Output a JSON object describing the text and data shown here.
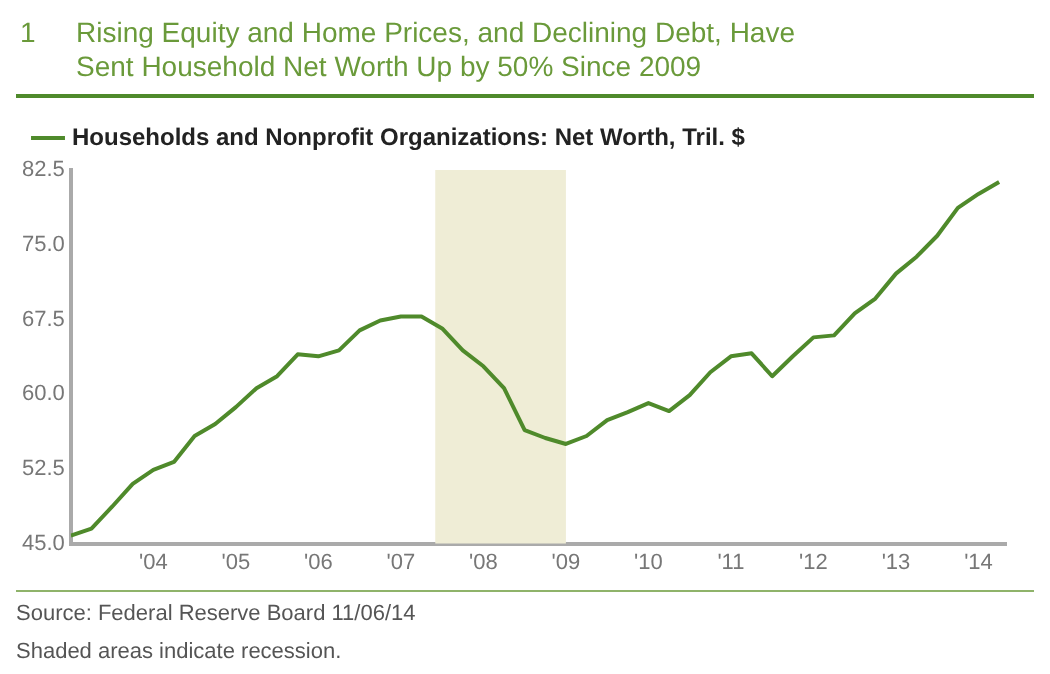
{
  "chart_data": {
    "type": "line",
    "title": "Rising Equity and Home Prices, and Declining Debt, Have Sent Household Net Worth Up by 50% Since 2009",
    "x": [
      "2003-01",
      "2003-04",
      "2003-07",
      "2003-10",
      "2004-01",
      "2004-04",
      "2004-07",
      "2004-10",
      "2005-01",
      "2005-04",
      "2005-07",
      "2005-10",
      "2006-01",
      "2006-04",
      "2006-07",
      "2006-10",
      "2007-01",
      "2007-04",
      "2007-07",
      "2007-10",
      "2008-01",
      "2008-04",
      "2008-07",
      "2008-10",
      "2009-01",
      "2009-04",
      "2009-07",
      "2009-10",
      "2010-01",
      "2010-04",
      "2010-07",
      "2010-10",
      "2011-01",
      "2011-04",
      "2011-07",
      "2011-10",
      "2012-01",
      "2012-04",
      "2012-07",
      "2012-10",
      "2013-01",
      "2013-04",
      "2013-07",
      "2013-10",
      "2014-01",
      "2014-04"
    ],
    "series": [
      {
        "name": "Households and Nonprofit Organizations: Net Worth, Tril. $",
        "color": "#4f8a2b",
        "values": [
          45.8,
          46.5,
          48.7,
          51.0,
          52.4,
          53.2,
          55.8,
          57.0,
          58.7,
          60.6,
          61.8,
          64.0,
          63.8,
          64.4,
          66.4,
          67.4,
          67.8,
          67.8,
          66.6,
          64.4,
          62.8,
          60.6,
          56.4,
          55.6,
          55.0,
          55.8,
          57.4,
          58.2,
          59.1,
          58.3,
          59.9,
          62.2,
          63.8,
          64.1,
          61.8,
          63.8,
          65.7,
          65.9,
          68.1,
          69.6,
          72.1,
          73.8,
          75.9,
          78.7,
          80.1,
          81.3
        ]
      }
    ],
    "xlim": [
      "2003-01",
      "2014-05"
    ],
    "xticks": [
      {
        "value": "2004",
        "label": "'04"
      },
      {
        "value": "2005",
        "label": "'05"
      },
      {
        "value": "2006",
        "label": "'06"
      },
      {
        "value": "2007",
        "label": "'07"
      },
      {
        "value": "2008",
        "label": "'08"
      },
      {
        "value": "2009",
        "label": "'09"
      },
      {
        "value": "2010",
        "label": "'10"
      },
      {
        "value": "2011",
        "label": "'11"
      },
      {
        "value": "2012",
        "label": "'12"
      },
      {
        "value": "2013",
        "label": "'13"
      },
      {
        "value": "2014",
        "label": "'14"
      }
    ],
    "ylim": [
      45,
      82.5
    ],
    "yticks": [
      {
        "value": 45,
        "label": "45.0"
      },
      {
        "value": 52.5,
        "label": "52.5"
      },
      {
        "value": 60,
        "label": "60.0"
      },
      {
        "value": 67.5,
        "label": "67.5"
      },
      {
        "value": 75,
        "label": "75.0"
      },
      {
        "value": 82.5,
        "label": "82.5"
      }
    ],
    "bands": [
      {
        "axis": "x",
        "from": "2007-06",
        "to": "2009-01",
        "color": "#efedd6"
      }
    ],
    "legend": "top left",
    "annotations": [
      "1",
      "Source: Federal Reserve Board 11/06/14",
      "Shaded areas indicate recession."
    ]
  }
}
